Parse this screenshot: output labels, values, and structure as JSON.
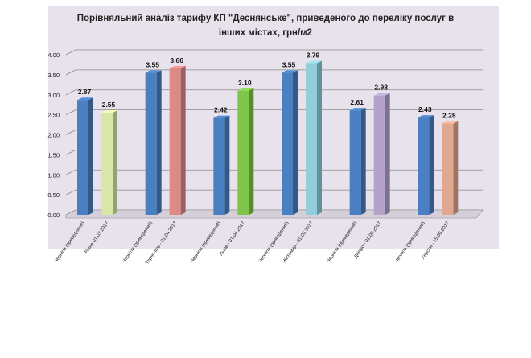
{
  "chart_data": {
    "type": "bar",
    "title_lines": [
      "Порівняльний аналіз тарифу КП \"Деснянське\", приведеного до переліку послуг в",
      "інших містах, грн/м2"
    ],
    "ylim": [
      0,
      4
    ],
    "yticks": [
      "0.00",
      "0.50",
      "1.00",
      "1.50",
      "2.00",
      "2.50",
      "3.00",
      "3.50",
      "4.00"
    ],
    "grid": true,
    "legend": "none",
    "categories": [
      "Чернігів (приведений)",
      "Рівне 01.03.2017",
      "Чернігів (приведений)",
      "Тернопіль - 01.04.2017",
      "Чернігів (приведений)",
      "Львів - 01.04.2017",
      "Чернігів (приведений)",
      "Житомир - 01.09.2017",
      "Чернігів (приведений)",
      "Дніпро - 01.09.2017",
      "Чернігів (приведений)",
      "Херсон - 15.09.2017"
    ],
    "values": [
      2.87,
      2.55,
      3.55,
      3.66,
      2.42,
      3.1,
      3.55,
      3.79,
      2.61,
      2.98,
      2.43,
      2.28
    ],
    "value_labels": [
      "2.87",
      "2.55",
      "3.55",
      "3.66",
      "2.42",
      "3.10",
      "3.55",
      "3.79",
      "2.61",
      "2.98",
      "2.43",
      "2.28"
    ],
    "colors": [
      "#4a7fc1",
      "#d8e6a8",
      "#4a7fc1",
      "#dc8a86",
      "#4a7fc1",
      "#7ec64a",
      "#4a7fc1",
      "#92cddb",
      "#4a7fc1",
      "#b3a2c9",
      "#4a7fc1",
      "#e0a890"
    ],
    "background": "#e8e2ec",
    "gridColor": "#8a8a8a"
  }
}
